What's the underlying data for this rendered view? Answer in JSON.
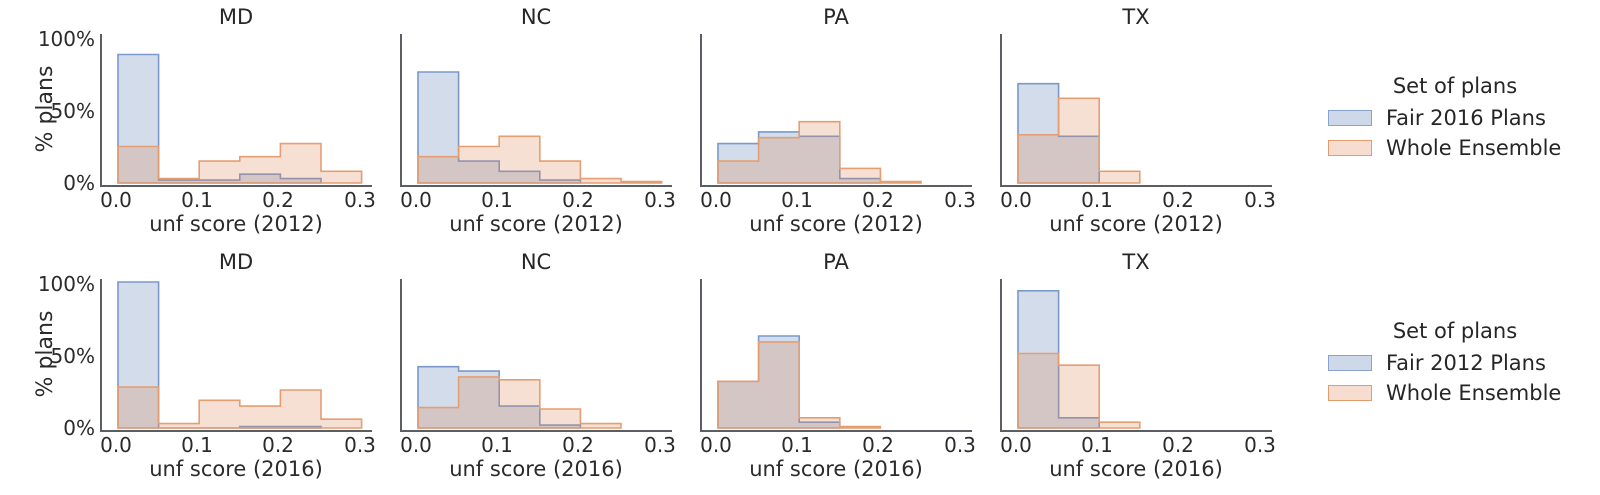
{
  "chart_data": {
    "type": "histogram",
    "grid": "2 rows x 4 columns of overlaid step histograms",
    "ylabel": "% plans",
    "y_tick_labels": [
      "100%",
      "50%",
      "0%"
    ],
    "x_tick_labels": [
      "0.0",
      "0.1",
      "0.2",
      "0.3"
    ],
    "xlim": [
      0,
      0.3
    ],
    "ylim": [
      0,
      100
    ],
    "bin_edges": [
      0.0,
      0.05,
      0.1,
      0.15,
      0.2,
      0.25,
      0.3
    ],
    "values_unit": "percent of plans per bin",
    "colors": {
      "fair_fill": "#4c72b0",
      "fair_edge": "#7b99c9",
      "ensemble_fill": "#dd8452",
      "ensemble_edge": "#e59e71",
      "fill_opacity": 0.25,
      "spine": "#5b5e62",
      "text": "#2b2b2b"
    },
    "rows": [
      {
        "xlabel": "unf score (2012)",
        "legend": {
          "title": "Set of plans",
          "entries": [
            "Fair 2016 Plans",
            "Whole Ensemble"
          ]
        },
        "panels": [
          {
            "title": "MD",
            "series": [
              {
                "name": "Fair 2016 Plans",
                "values": [
                  88,
                  2,
                  2,
                  6,
                  3,
                  0
                ]
              },
              {
                "name": "Whole Ensemble",
                "values": [
                  25,
                  3,
                  15,
                  18,
                  27,
                  8
                ]
              }
            ]
          },
          {
            "title": "NC",
            "series": [
              {
                "name": "Fair 2016 Plans",
                "values": [
                  76,
                  15,
                  8,
                  2,
                  0,
                  0
                ]
              },
              {
                "name": "Whole Ensemble",
                "values": [
                  18,
                  25,
                  32,
                  15,
                  3,
                  1
                ]
              }
            ]
          },
          {
            "title": "PA",
            "series": [
              {
                "name": "Fair 2016 Plans",
                "values": [
                  27,
                  35,
                  32,
                  3,
                  0,
                  0
                ]
              },
              {
                "name": "Whole Ensemble",
                "values": [
                  15,
                  31,
                  42,
                  10,
                  1,
                  0
                ]
              }
            ]
          },
          {
            "title": "TX",
            "series": [
              {
                "name": "Fair 2016 Plans",
                "values": [
                  68,
                  32,
                  0,
                  0,
                  0,
                  0
                ]
              },
              {
                "name": "Whole Ensemble",
                "values": [
                  33,
                  58,
                  8,
                  0,
                  0,
                  0
                ]
              }
            ]
          }
        ]
      },
      {
        "xlabel": "unf score (2016)",
        "legend": {
          "title": "Set of plans",
          "entries": [
            "Fair 2012 Plans",
            "Whole Ensemble"
          ]
        },
        "panels": [
          {
            "title": "MD",
            "series": [
              {
                "name": "Fair 2012 Plans",
                "values": [
                  100,
                  0,
                  0,
                  1,
                  1,
                  0
                ]
              },
              {
                "name": "Whole Ensemble",
                "values": [
                  28,
                  3,
                  19,
                  15,
                  26,
                  6
                ]
              }
            ]
          },
          {
            "title": "NC",
            "series": [
              {
                "name": "Fair 2012 Plans",
                "values": [
                  42,
                  39,
                  15,
                  2,
                  0,
                  0
                ]
              },
              {
                "name": "Whole Ensemble",
                "values": [
                  14,
                  35,
                  33,
                  13,
                  3,
                  0
                ]
              }
            ]
          },
          {
            "title": "PA",
            "series": [
              {
                "name": "Fair 2012 Plans",
                "values": [
                  32,
                  63,
                  4,
                  0,
                  0,
                  0
                ]
              },
              {
                "name": "Whole Ensemble",
                "values": [
                  32,
                  59,
                  7,
                  1,
                  0,
                  0
                ]
              }
            ]
          },
          {
            "title": "TX",
            "series": [
              {
                "name": "Fair 2012 Plans",
                "values": [
                  94,
                  7,
                  0,
                  0,
                  0,
                  0
                ]
              },
              {
                "name": "Whole Ensemble",
                "values": [
                  51,
                  43,
                  4,
                  0,
                  0,
                  0
                ]
              }
            ]
          }
        ]
      }
    ]
  }
}
